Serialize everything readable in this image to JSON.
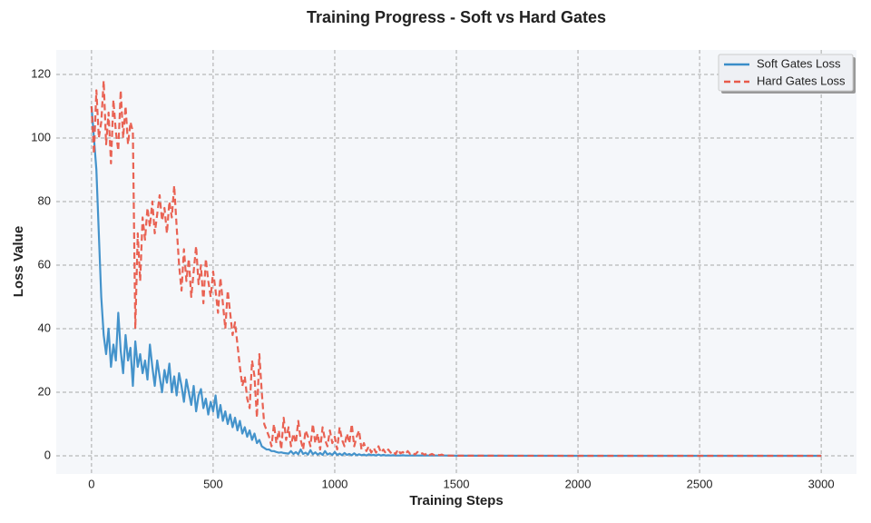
{
  "chart_data": {
    "type": "line",
    "title": "Training Progress - Soft vs Hard Gates",
    "xlabel": "Training Steps",
    "ylabel": "Loss Value",
    "x": [
      0,
      10,
      20,
      30,
      40,
      50,
      60,
      70,
      80,
      90,
      100,
      110,
      120,
      130,
      140,
      150,
      160,
      170,
      180,
      190,
      200,
      210,
      220,
      230,
      240,
      250,
      260,
      270,
      280,
      290,
      300,
      310,
      320,
      330,
      340,
      350,
      360,
      370,
      380,
      390,
      400,
      410,
      420,
      430,
      440,
      450,
      460,
      470,
      480,
      490,
      500,
      510,
      520,
      530,
      540,
      550,
      560,
      570,
      580,
      590,
      600,
      610,
      620,
      630,
      640,
      650,
      660,
      670,
      680,
      690,
      700,
      710,
      720,
      730,
      740,
      750,
      760,
      770,
      780,
      790,
      800,
      810,
      820,
      830,
      840,
      850,
      860,
      870,
      880,
      890,
      900,
      910,
      920,
      930,
      940,
      950,
      960,
      970,
      980,
      990,
      1000,
      1010,
      1020,
      1030,
      1040,
      1050,
      1060,
      1070,
      1080,
      1090,
      1100,
      1110,
      1120,
      1130,
      1140,
      1150,
      1160,
      1170,
      1180,
      1190,
      1200,
      1210,
      1220,
      1230,
      1240,
      1250,
      1260,
      1270,
      1280,
      1290,
      1300,
      1310,
      1320,
      1330,
      1340,
      1350,
      1360,
      1370,
      1380,
      1390,
      1400,
      1410,
      1420,
      1430,
      1440,
      1450,
      1500,
      2000,
      2500,
      3000
    ],
    "series": [
      {
        "name": "Soft Gates Loss",
        "color": "#3a8dc8",
        "dash": "solid",
        "values": [
          110,
          100,
          90,
          70,
          50,
          38,
          32,
          40,
          28,
          35,
          30,
          45,
          33,
          26,
          38,
          30,
          34,
          22,
          36,
          28,
          32,
          26,
          30,
          24,
          35,
          28,
          22,
          30,
          25,
          20,
          27,
          23,
          29,
          20,
          25,
          19,
          26,
          22,
          17,
          24,
          20,
          16,
          22,
          14,
          19,
          21,
          15,
          18,
          13,
          17,
          14,
          19,
          12,
          16,
          11,
          14,
          10,
          13,
          9,
          12,
          8,
          11,
          7,
          9,
          6,
          8,
          5,
          7,
          4,
          5,
          3,
          2.5,
          2,
          2,
          1.5,
          1.5,
          1.2,
          1,
          1.1,
          0.9,
          0.8,
          0.7,
          1.5,
          0.6,
          1.2,
          0.5,
          2,
          0.6,
          1,
          0.4,
          1.8,
          0.5,
          1.1,
          0.4,
          0.9,
          0.3,
          1.5,
          0.4,
          0.8,
          0.3,
          1.2,
          0.3,
          0.7,
          0.2,
          0.9,
          0.3,
          0.6,
          0.2,
          0.8,
          0.2,
          0.5,
          0.2,
          0.4,
          0.1,
          0.5,
          0.2,
          0.3,
          0.1,
          0.4,
          0.1,
          0.3,
          0.1,
          0.2,
          0.1,
          0.2,
          0.1,
          0.1,
          0.1,
          0.2,
          0.1,
          0.1,
          0.1,
          0.1,
          0.1,
          0.1,
          0.1,
          0.1,
          0.1,
          0.1,
          0.1,
          0.1,
          0.1,
          0.1,
          0.1,
          0.1,
          0.1,
          0.05,
          0.02,
          0.01,
          0.01
        ]
      },
      {
        "name": "Hard Gates Loss",
        "color": "#e85a4a",
        "dash": "dashed",
        "values": [
          110,
          95,
          115,
          100,
          105,
          118,
          98,
          108,
          92,
          112,
          102,
          96,
          115,
          100,
          110,
          98,
          105,
          102,
          40,
          70,
          55,
          75,
          68,
          78,
          72,
          80,
          70,
          76,
          82,
          74,
          78,
          70,
          80,
          75,
          85,
          72,
          60,
          52,
          65,
          55,
          62,
          50,
          58,
          66,
          54,
          60,
          48,
          62,
          55,
          50,
          58,
          52,
          45,
          56,
          48,
          40,
          52,
          45,
          38,
          42,
          35,
          28,
          22,
          25,
          18,
          15,
          30,
          25,
          12,
          32,
          20,
          10,
          8,
          6,
          3,
          10,
          4,
          8,
          2,
          12,
          5,
          9,
          3,
          7,
          4,
          11,
          5,
          2,
          8,
          6,
          3,
          10,
          4,
          7,
          2,
          9,
          5,
          3,
          8,
          4,
          6,
          2,
          9,
          5,
          3,
          7,
          4,
          10,
          3,
          6,
          8,
          2,
          4,
          1.5,
          3,
          1,
          2.5,
          1,
          3,
          1,
          2,
          0.8,
          2,
          1,
          1.5,
          0.5,
          2,
          0.8,
          1.2,
          0.5,
          1.5,
          0.6,
          1,
          0.4,
          1.2,
          0.5,
          0.8,
          0.3,
          1,
          0.3,
          0.6,
          0.2,
          0.5,
          0.2,
          0.4,
          0.1,
          0.05,
          0.02,
          0.01,
          0.01
        ]
      }
    ],
    "xlim": [
      -145,
      3145
    ],
    "ylim": [
      -5.7,
      127.7
    ],
    "xticks": [
      0,
      500,
      1000,
      1500,
      2000,
      2500,
      3000
    ],
    "yticks": [
      0,
      20,
      40,
      60,
      80,
      100,
      120
    ],
    "grid": true,
    "legend": "upper right"
  }
}
